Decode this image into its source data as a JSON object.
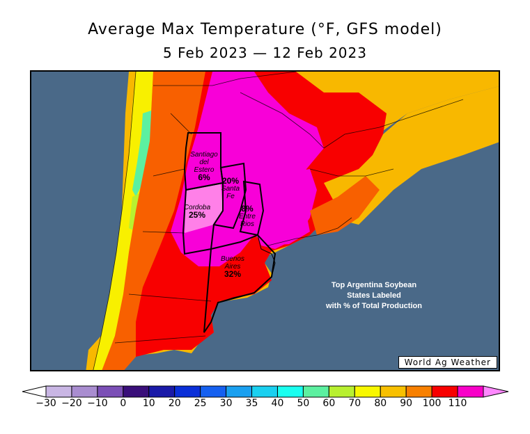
{
  "title": "Average Max Temperature (°F, GFS model)",
  "subtitle": "5 Feb 2023 — 12 Feb 2023",
  "states": [
    {
      "name": "Santiago del Estero",
      "line1": "Santiago",
      "line2": "del",
      "line3": "Estero",
      "pct": "6%"
    },
    {
      "name": "Santa Fe",
      "line1": "Santa",
      "line2": "Fe",
      "pct": "20%"
    },
    {
      "name": "Cordoba",
      "line1": "Cordoba",
      "pct": "25%"
    },
    {
      "name": "Entre Rios",
      "line1": "Entre",
      "line2": "Rios",
      "pct": "8%"
    },
    {
      "name": "Buenos Aires",
      "line1": "Buenos",
      "line2": "Aires",
      "pct": "32%"
    }
  ],
  "note": {
    "line1": "Top Argentina Soybean",
    "line2": "States Labeled",
    "line3": "with % of Total Production"
  },
  "brand": "World Ag Weather",
  "legend": {
    "labels": [
      "−30",
      "−20",
      "−10",
      "0",
      "10",
      "20",
      "25",
      "30",
      "35",
      "40",
      "50",
      "60",
      "70",
      "80",
      "90",
      "100",
      "110"
    ],
    "colors": [
      "#c9b6e4",
      "#a98dd0",
      "#7b4fb6",
      "#3a0f7a",
      "#1a1aa8",
      "#0a2fd8",
      "#1560f0",
      "#1aa0f0",
      "#1ad0f0",
      "#1afff0",
      "#5cf0a0",
      "#b8f030",
      "#f8f800",
      "#f8c000",
      "#f88000",
      "#f80000",
      "#f800c8"
    ],
    "under_color": "#ffffff",
    "over_color": "#ff88ff"
  },
  "colors": {
    "ocean": "#4a6988",
    "t110": "#f800d8",
    "t100": "#f80000",
    "t90": "#f86000",
    "t80": "#f8b800",
    "t70": "#f8f000",
    "t60": "#b8f030",
    "t50": "#5cf0a0",
    "land_mid": "#f0a000"
  }
}
